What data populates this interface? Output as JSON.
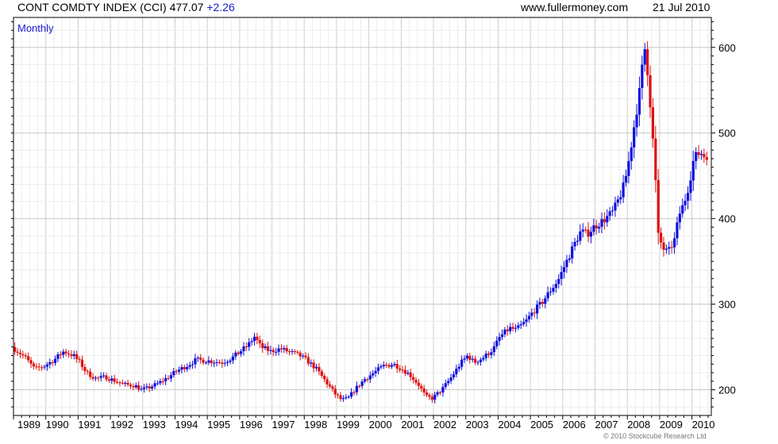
{
  "header": {
    "title": "CONT COMDTY INDEX (CCI)",
    "last": "477.07",
    "change": "+2.26",
    "source": "www.fullermoney.com",
    "date": "21 Jul 2010"
  },
  "footer": "© 2010 Stockcube Research Ltd",
  "chart_data": {
    "type": "candlestick",
    "period_label": "Monthly",
    "x_axis_labels": [
      "1989",
      "1990",
      "1991",
      "1992",
      "1993",
      "1994",
      "1995",
      "1996",
      "1997",
      "1998",
      "1999",
      "2000",
      "2001",
      "2002",
      "2003",
      "2004",
      "2005",
      "2006",
      "2007",
      "2008",
      "2009",
      "2010"
    ],
    "y_ticks": [
      200,
      300,
      400,
      500,
      600
    ],
    "ylim": [
      170,
      635
    ],
    "xlim": [
      1989.0,
      2010.6
    ],
    "grid": true,
    "colors": {
      "up": "#1010e0",
      "down": "#e01010",
      "grid": "#d8d8d8",
      "axis": "#000000",
      "label": "#1a1ad0"
    },
    "close_path": [
      [
        1989.0,
        250
      ],
      [
        1989.4,
        238
      ],
      [
        1989.7,
        224
      ],
      [
        1990.0,
        228
      ],
      [
        1990.3,
        235
      ],
      [
        1990.6,
        245
      ],
      [
        1990.9,
        240
      ],
      [
        1991.1,
        232
      ],
      [
        1991.3,
        220
      ],
      [
        1991.6,
        213
      ],
      [
        1991.9,
        215
      ],
      [
        1992.2,
        210
      ],
      [
        1992.5,
        206
      ],
      [
        1992.8,
        205
      ],
      [
        1993.0,
        200
      ],
      [
        1993.2,
        202
      ],
      [
        1993.5,
        207
      ],
      [
        1993.8,
        214
      ],
      [
        1994.1,
        222
      ],
      [
        1994.4,
        228
      ],
      [
        1994.7,
        235
      ],
      [
        1995.0,
        234
      ],
      [
        1995.5,
        232
      ],
      [
        1995.8,
        237
      ],
      [
        1996.0,
        243
      ],
      [
        1996.3,
        252
      ],
      [
        1996.5,
        262
      ],
      [
        1996.7,
        250
      ],
      [
        1997.0,
        245
      ],
      [
        1997.3,
        248
      ],
      [
        1997.6,
        244
      ],
      [
        1997.9,
        240
      ],
      [
        1998.1,
        235
      ],
      [
        1998.4,
        225
      ],
      [
        1998.7,
        210
      ],
      [
        1999.0,
        195
      ],
      [
        1999.2,
        188
      ],
      [
        1999.4,
        190
      ],
      [
        1999.6,
        200
      ],
      [
        1999.9,
        212
      ],
      [
        2000.2,
        220
      ],
      [
        2000.5,
        228
      ],
      [
        2000.8,
        230
      ],
      [
        2001.0,
        226
      ],
      [
        2001.3,
        218
      ],
      [
        2001.6,
        205
      ],
      [
        2001.8,
        192
      ],
      [
        2002.0,
        190
      ],
      [
        2002.3,
        200
      ],
      [
        2002.6,
        215
      ],
      [
        2002.9,
        232
      ],
      [
        2003.1,
        240
      ],
      [
        2003.3,
        232
      ],
      [
        2003.6,
        238
      ],
      [
        2003.9,
        248
      ],
      [
        2004.1,
        262
      ],
      [
        2004.4,
        272
      ],
      [
        2004.6,
        270
      ],
      [
        2004.9,
        280
      ],
      [
        2005.1,
        290
      ],
      [
        2005.4,
        302
      ],
      [
        2005.7,
        318
      ],
      [
        2005.9,
        328
      ],
      [
        2006.1,
        345
      ],
      [
        2006.4,
        370
      ],
      [
        2006.6,
        385
      ],
      [
        2006.8,
        382
      ],
      [
        2007.0,
        390
      ],
      [
        2007.3,
        398
      ],
      [
        2007.6,
        408
      ],
      [
        2007.8,
        425
      ],
      [
        2007.95,
        440
      ],
      [
        2008.1,
        470
      ],
      [
        2008.3,
        520
      ],
      [
        2008.45,
        555
      ],
      [
        2008.55,
        595
      ],
      [
        2008.6,
        600
      ],
      [
        2008.7,
        560
      ],
      [
        2008.8,
        510
      ],
      [
        2008.9,
        455
      ],
      [
        2009.0,
        380
      ],
      [
        2009.15,
        365
      ],
      [
        2009.3,
        360
      ],
      [
        2009.5,
        375
      ],
      [
        2009.65,
        405
      ],
      [
        2009.8,
        418
      ],
      [
        2009.95,
        440
      ],
      [
        2010.1,
        470
      ],
      [
        2010.3,
        478
      ],
      [
        2010.45,
        472
      ],
      [
        2010.55,
        477
      ]
    ]
  }
}
